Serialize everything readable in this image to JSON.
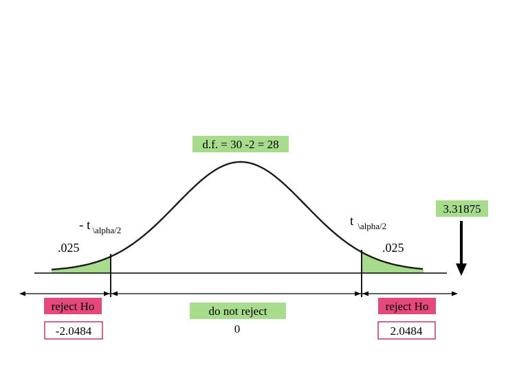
{
  "df_label": "d.f. = 30 -2 = 28",
  "test_statistic": "3.31875",
  "left_critical_symbol": "- t",
  "right_critical_symbol": "t",
  "critical_subscript": "\\alpha/2",
  "left_tail_area": ".025",
  "right_tail_area": ".025",
  "left_region_label": "reject Ho",
  "right_region_label": "reject Ho",
  "middle_region_label": "do not reject",
  "center_value": "0",
  "left_critical_value": "-2.0484",
  "right_critical_value": "2.0484",
  "colors": {
    "accept_fill": "#a6dc8c",
    "reject_fill": "#e5487a",
    "tail_fill": "#a6dc8c",
    "reject_box_border": "#c8426a",
    "curve": "#1a1a1a"
  }
}
